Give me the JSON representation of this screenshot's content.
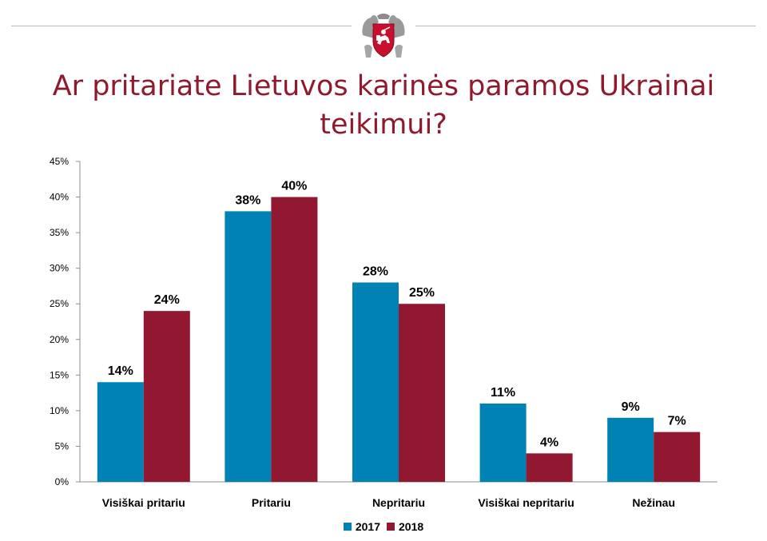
{
  "header": {
    "emblem_icon": "lithuanian-coat-of-arms-icon",
    "title": "Ar pritariate Lietuvos karinės paramos Ukrainai teikimui?"
  },
  "colors": {
    "title": "#8f1a2c",
    "series_2017": "#0082b4",
    "series_2018": "#911830"
  },
  "chart_data": {
    "type": "bar",
    "title": "Ar pritariate Lietuvos karinės paramos Ukrainai teikimui?",
    "categories": [
      "Visiškai pritariu",
      "Pritariu",
      "Nepritariu",
      "Visiškai nepritariu",
      "Nežinau"
    ],
    "series": [
      {
        "name": "2017",
        "values": [
          14,
          38,
          28,
          11,
          9
        ],
        "labels": [
          "14%",
          "38%",
          "28%",
          "11%",
          "9%"
        ]
      },
      {
        "name": "2018",
        "values": [
          24,
          40,
          25,
          4,
          7
        ],
        "labels": [
          "24%",
          "40%",
          "25%",
          "4%",
          "7%"
        ]
      }
    ],
    "ylim": [
      0,
      45
    ],
    "yticks": [
      "0%",
      "5%",
      "10%",
      "15%",
      "20%",
      "25%",
      "30%",
      "35%",
      "40%",
      "45%"
    ],
    "xlabel": "",
    "ylabel": "",
    "grid": false,
    "legend_position": "bottom"
  }
}
